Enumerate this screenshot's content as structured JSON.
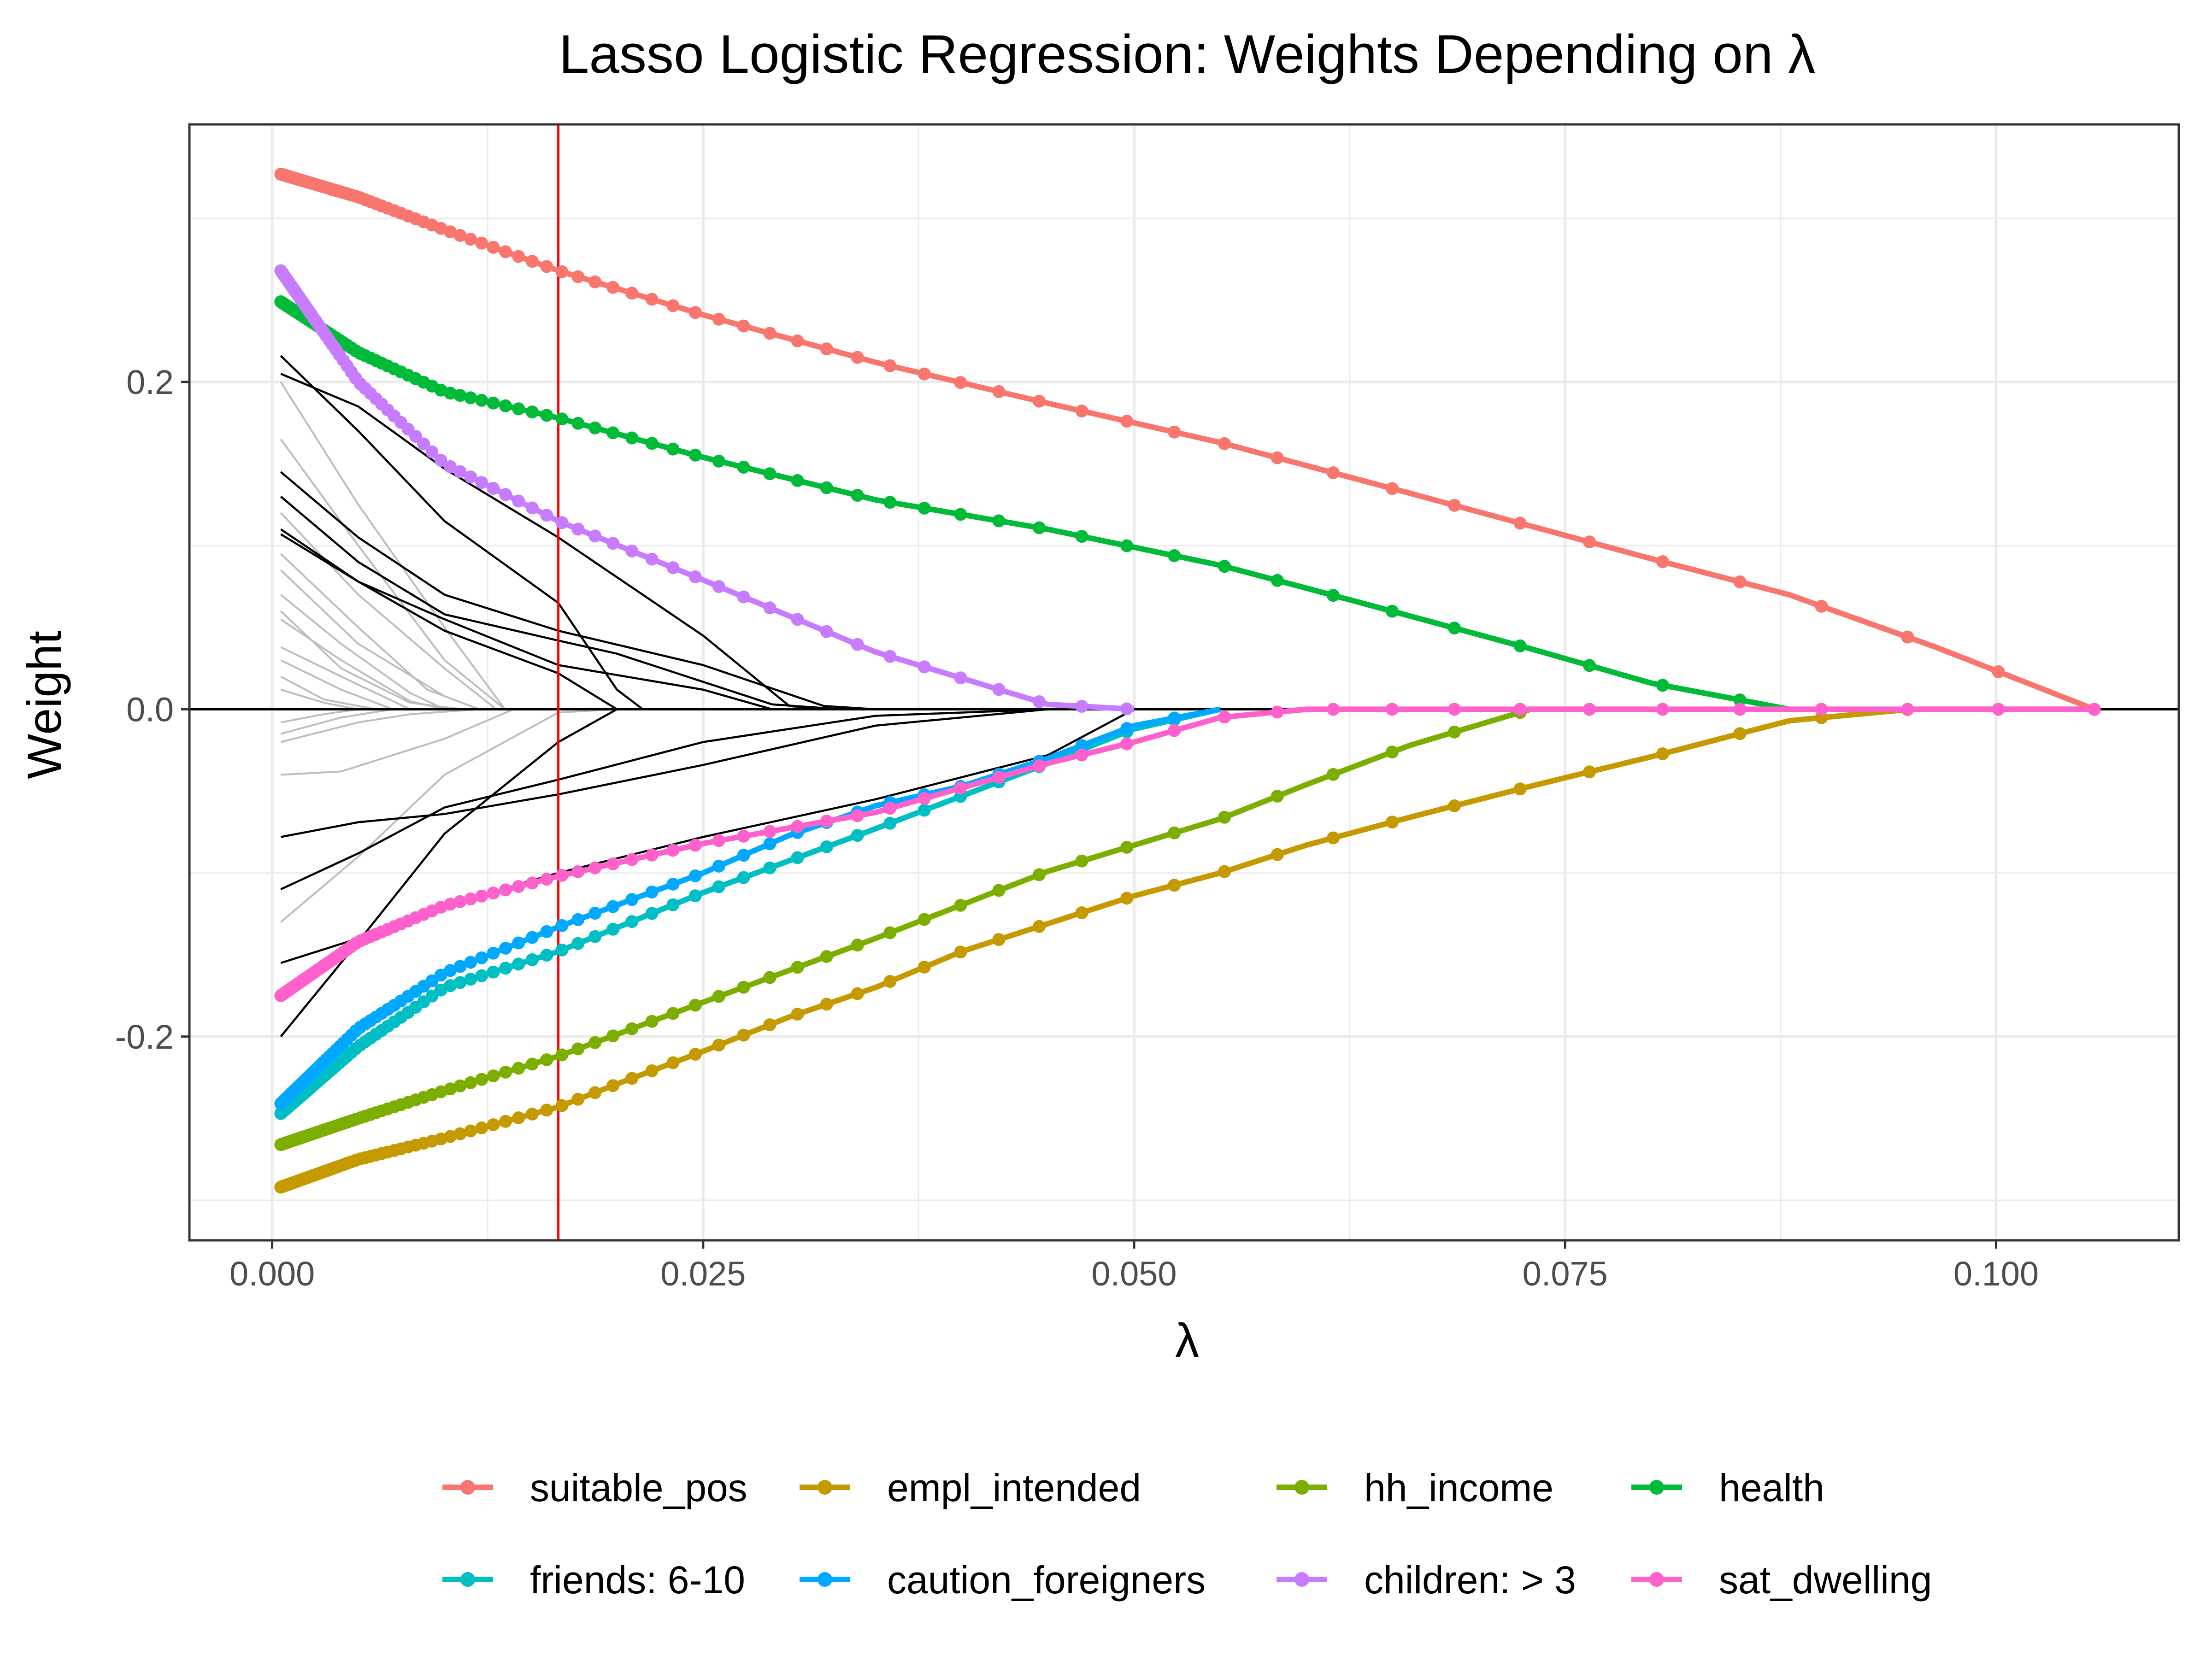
{
  "chart_data": {
    "type": "line",
    "title": "Lasso Logistic Regression: Weights Depending on  λ",
    "xlabel": "λ",
    "ylabel": "Weight",
    "xlim": [
      -0.0048,
      0.1106
    ],
    "ylim": [
      -0.3245,
      0.3574
    ],
    "x_ticks": [
      0.0,
      0.025,
      0.05,
      0.075,
      0.1
    ],
    "x_tick_labels": [
      "0.000",
      "0.025",
      "0.050",
      "0.075",
      "0.100"
    ],
    "y_ticks": [
      -0.2,
      0.0,
      0.2
    ],
    "y_tick_labels": [
      "-0.2",
      "0.0",
      "0.2"
    ],
    "grid": true,
    "legend_position": "bottom",
    "annotations": {
      "selected_lambda": 0.0166,
      "selected_lambda_color": "#ff0000",
      "zero_line": 0.0
    },
    "series": [
      {
        "name": "suitable_pos",
        "color": "#F8766D",
        "x": [
          0.0005,
          0.005,
          0.01,
          0.0166,
          0.025,
          0.035,
          0.045,
          0.055,
          0.066,
          0.08,
          0.088,
          0.0965,
          0.1057
        ],
        "y": [
          0.327,
          0.313,
          0.293,
          0.268,
          0.241,
          0.212,
          0.187,
          0.163,
          0.132,
          0.092,
          0.07,
          0.038,
          0.0
        ]
      },
      {
        "name": "empl_intended",
        "color": "#C49A00",
        "x": [
          0.0005,
          0.005,
          0.01,
          0.0166,
          0.02,
          0.025,
          0.03,
          0.035,
          0.04,
          0.045,
          0.05,
          0.055,
          0.06,
          0.066,
          0.073,
          0.08,
          0.088,
          0.095,
          0.1057
        ],
        "y": [
          -0.292,
          -0.275,
          -0.262,
          -0.243,
          -0.229,
          -0.209,
          -0.188,
          -0.17,
          -0.148,
          -0.131,
          -0.114,
          -0.1,
          -0.083,
          -0.066,
          -0.047,
          -0.029,
          -0.007,
          0.0,
          0.0
        ]
      },
      {
        "name": "hh_income",
        "color": "#7CAE00",
        "x": [
          0.0005,
          0.005,
          0.01,
          0.0166,
          0.025,
          0.035,
          0.045,
          0.055,
          0.06,
          0.066,
          0.073,
          0.08
        ],
        "y": [
          -0.266,
          -0.25,
          -0.233,
          -0.212,
          -0.179,
          -0.14,
          -0.099,
          -0.067,
          -0.046,
          -0.022,
          0.0,
          0.0
        ]
      },
      {
        "name": "health",
        "color": "#00BA38",
        "x": [
          0.0005,
          0.005,
          0.01,
          0.0166,
          0.025,
          0.035,
          0.045,
          0.055,
          0.06,
          0.066,
          0.073,
          0.08,
          0.088
        ],
        "y": [
          0.249,
          0.218,
          0.194,
          0.178,
          0.154,
          0.128,
          0.11,
          0.088,
          0.074,
          0.057,
          0.037,
          0.016,
          0.0
        ]
      },
      {
        "name": "friends: 6-10",
        "color": "#00BFC4",
        "x": [
          0.0005,
          0.005,
          0.01,
          0.0166,
          0.025,
          0.035,
          0.045,
          0.05,
          0.055
        ],
        "y": [
          -0.247,
          -0.206,
          -0.17,
          -0.148,
          -0.112,
          -0.073,
          -0.033,
          -0.012,
          0.0
        ]
      },
      {
        "name": "caution_foreigners",
        "color": "#00A9FF",
        "x": [
          0.0005,
          0.005,
          0.01,
          0.0166,
          0.025,
          0.03,
          0.035,
          0.04,
          0.045,
          0.05,
          0.055
        ],
        "y": [
          -0.241,
          -0.195,
          -0.161,
          -0.133,
          -0.1,
          -0.077,
          -0.059,
          -0.047,
          -0.03,
          -0.01,
          0.0
        ]
      },
      {
        "name": "children: > 3",
        "color": "#C77CFF",
        "x": [
          0.0005,
          0.005,
          0.01,
          0.0166,
          0.025,
          0.035,
          0.045,
          0.05
        ],
        "y": [
          0.268,
          0.2,
          0.15,
          0.115,
          0.079,
          0.035,
          0.003,
          0.0
        ]
      },
      {
        "name": "sat_dwelling",
        "color": "#FF61CC",
        "x": [
          0.0005,
          0.005,
          0.01,
          0.0166,
          0.025,
          0.035,
          0.045,
          0.05,
          0.055,
          0.06,
          0.1057
        ],
        "y": [
          -0.175,
          -0.142,
          -0.12,
          -0.102,
          -0.082,
          -0.063,
          -0.033,
          -0.02,
          -0.005,
          0.0,
          0.0
        ]
      }
    ],
    "background_paths_black": [
      {
        "x": [
          0.0005,
          0.005,
          0.01,
          0.0166,
          0.02,
          0.0215
        ],
        "y": [
          0.216,
          0.17,
          0.115,
          0.065,
          0.012,
          0.0
        ]
      },
      {
        "x": [
          0.0005,
          0.005,
          0.01,
          0.0166,
          0.025,
          0.03,
          0.032
        ],
        "y": [
          0.205,
          0.185,
          0.147,
          0.105,
          0.045,
          0.002,
          0.0
        ]
      },
      {
        "x": [
          0.0005,
          0.005,
          0.01,
          0.0166,
          0.025,
          0.032,
          0.035
        ],
        "y": [
          0.145,
          0.105,
          0.07,
          0.048,
          0.027,
          0.002,
          0.0
        ]
      },
      {
        "x": [
          0.0005,
          0.005,
          0.01,
          0.0166,
          0.02,
          0.029,
          0.033
        ],
        "y": [
          0.13,
          0.09,
          0.058,
          0.042,
          0.034,
          0.003,
          0.0
        ]
      },
      {
        "x": [
          0.0005,
          0.005,
          0.01,
          0.0166,
          0.025,
          0.029
        ],
        "y": [
          0.107,
          0.078,
          0.055,
          0.027,
          0.012,
          0.0
        ]
      },
      {
        "x": [
          0.0005,
          0.005,
          0.01,
          0.0166,
          0.02
        ],
        "y": [
          0.11,
          0.078,
          0.048,
          0.022,
          0.0
        ]
      },
      {
        "x": [
          0.0005,
          0.005,
          0.01,
          0.0166,
          0.025,
          0.035,
          0.045,
          0.05
        ],
        "y": [
          -0.078,
          -0.069,
          -0.064,
          -0.052,
          -0.034,
          -0.01,
          0.0,
          0.0
        ]
      },
      {
        "x": [
          0.0005,
          0.005,
          0.01,
          0.0166,
          0.025,
          0.035,
          0.045,
          0.05
        ],
        "y": [
          -0.11,
          -0.088,
          -0.06,
          -0.043,
          -0.02,
          -0.004,
          0.0,
          0.0
        ]
      },
      {
        "x": [
          0.0005,
          0.005,
          0.01,
          0.0166,
          0.025,
          0.035,
          0.045,
          0.05
        ],
        "y": [
          -0.155,
          -0.14,
          -0.12,
          -0.1,
          -0.078,
          -0.055,
          -0.028,
          0.0
        ]
      },
      {
        "x": [
          0.0005,
          0.005,
          0.01,
          0.0166,
          0.02
        ],
        "y": [
          -0.2,
          -0.142,
          -0.076,
          -0.02,
          0.0
        ]
      }
    ],
    "background_paths_gray": [
      {
        "x": [
          0.0005,
          0.005,
          0.01,
          0.0135
        ],
        "y": [
          0.2,
          0.125,
          0.05,
          0.0
        ]
      },
      {
        "x": [
          0.0005,
          0.005,
          0.01,
          0.0135
        ],
        "y": [
          0.165,
          0.1,
          0.03,
          0.0
        ]
      },
      {
        "x": [
          0.0005,
          0.005,
          0.01,
          0.013
        ],
        "y": [
          0.12,
          0.07,
          0.025,
          0.0
        ]
      },
      {
        "x": [
          0.0005,
          0.005,
          0.009,
          0.012
        ],
        "y": [
          0.095,
          0.05,
          0.012,
          0.0
        ]
      },
      {
        "x": [
          0.0005,
          0.005,
          0.01,
          0.012
        ],
        "y": [
          0.085,
          0.04,
          0.008,
          0.0
        ]
      },
      {
        "x": [
          0.0005,
          0.004,
          0.008,
          0.01
        ],
        "y": [
          0.07,
          0.04,
          0.01,
          0.0
        ]
      },
      {
        "x": [
          0.0005,
          0.004,
          0.008,
          0.01
        ],
        "y": [
          0.055,
          0.03,
          0.005,
          0.0
        ]
      },
      {
        "x": [
          0.0005,
          0.005,
          0.008
        ],
        "y": [
          0.038,
          0.015,
          0.0
        ]
      },
      {
        "x": [
          0.0005,
          0.004,
          0.007
        ],
        "y": [
          0.03,
          0.012,
          0.0
        ]
      },
      {
        "x": [
          0.0005,
          0.003,
          0.006
        ],
        "y": [
          0.02,
          0.006,
          0.0
        ]
      },
      {
        "x": [
          0.0005,
          0.003,
          0.005
        ],
        "y": [
          0.012,
          0.004,
          0.0
        ]
      },
      {
        "x": [
          0.0005,
          0.003,
          0.005
        ],
        "y": [
          -0.008,
          -0.003,
          0.0
        ]
      },
      {
        "x": [
          0.0005,
          0.004,
          0.007
        ],
        "y": [
          -0.015,
          -0.005,
          0.0
        ]
      },
      {
        "x": [
          0.0005,
          0.004,
          0.01,
          0.014
        ],
        "y": [
          -0.04,
          -0.038,
          -0.018,
          0.0
        ]
      },
      {
        "x": [
          0.0005,
          0.005,
          0.008,
          0.012
        ],
        "y": [
          -0.02,
          -0.008,
          -0.003,
          0.0
        ]
      },
      {
        "x": [
          0.0005,
          0.005,
          0.01,
          0.0166,
          0.02
        ],
        "y": [
          -0.13,
          -0.09,
          -0.04,
          -0.002,
          0.0
        ]
      },
      {
        "x": [
          0.0005,
          0.004,
          0.008,
          0.011
        ],
        "y": [
          0.06,
          0.025,
          0.004,
          0.0
        ]
      }
    ]
  }
}
